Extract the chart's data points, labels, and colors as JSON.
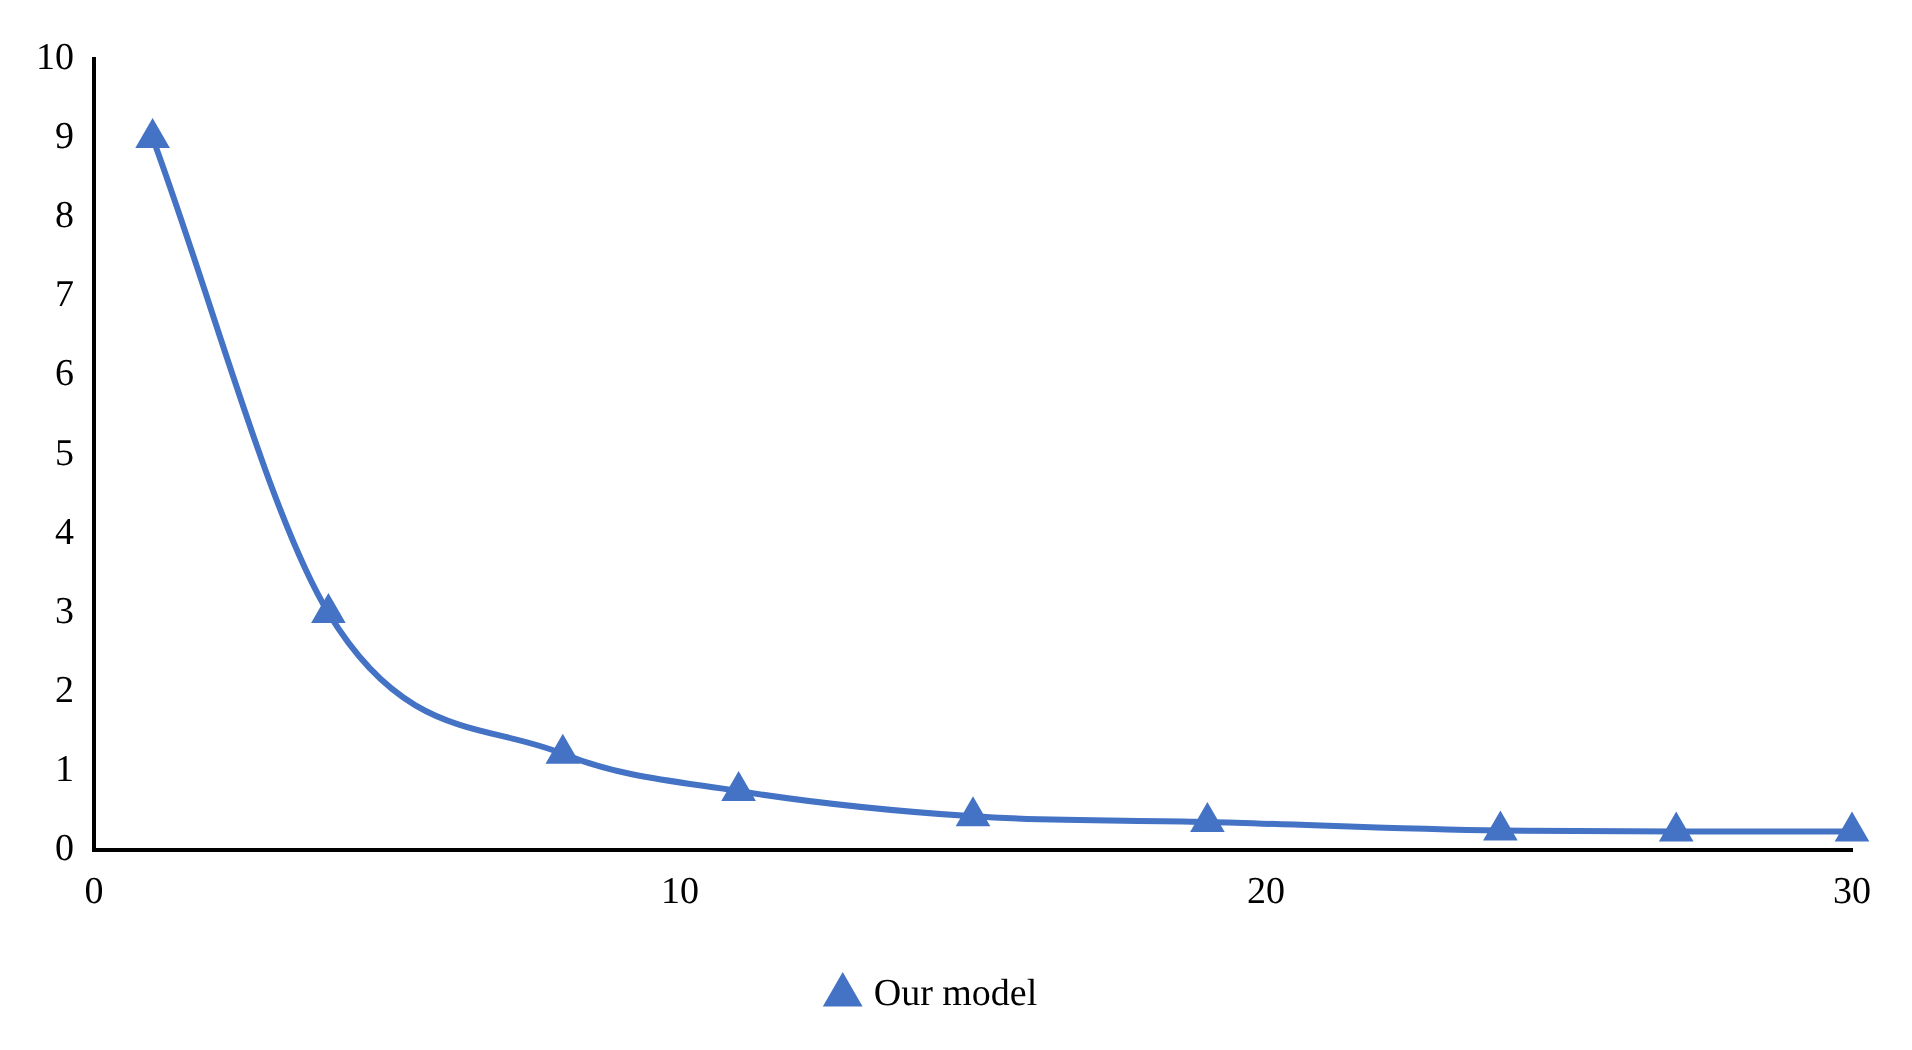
{
  "chart_data": {
    "type": "line",
    "x": [
      1,
      4,
      8,
      11,
      15,
      19,
      24,
      27,
      30
    ],
    "series": [
      {
        "name": "Our model",
        "color": "#4472c4",
        "values": [
          9,
          3,
          1.22,
          0.75,
          0.43,
          0.36,
          0.25,
          0.24,
          0.24
        ]
      }
    ],
    "xlim": [
      0,
      30
    ],
    "xticks": [
      0,
      10,
      20,
      30
    ],
    "ylim": [
      0,
      10
    ],
    "yticks": [
      0,
      1,
      2,
      3,
      4,
      5,
      6,
      7,
      8,
      9,
      10
    ],
    "grid": false,
    "legend": "bottom",
    "marker": "triangle",
    "line_style": "solid"
  }
}
